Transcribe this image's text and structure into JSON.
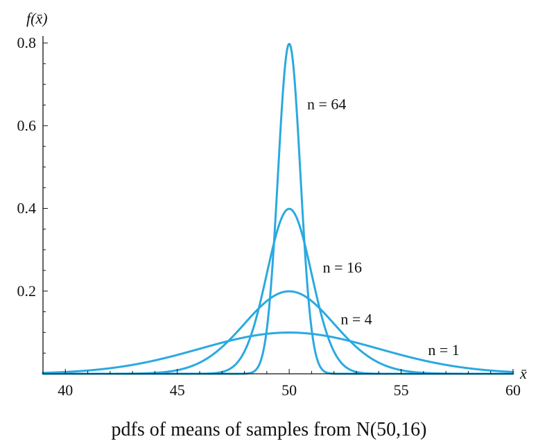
{
  "chart_data": {
    "type": "line",
    "title": "pdfs of means of samples from N(50,16)",
    "xlabel": "x̄",
    "ylabel": "f(x̄)",
    "xlim": [
      39,
      60
    ],
    "ylim": [
      0,
      0.8
    ],
    "xticks": [
      "40",
      "45",
      "50",
      "55",
      "60"
    ],
    "yticks": [
      "0.2",
      "0.4",
      "0.6",
      "0.8"
    ],
    "grid": false,
    "line_color": "#2aa9e0",
    "series": [
      {
        "name": "n = 1",
        "mean": 50,
        "sd": 4,
        "peak": 0.1
      },
      {
        "name": "n = 4",
        "mean": 50,
        "sd": 2,
        "peak": 0.2
      },
      {
        "name": "n = 16",
        "mean": 50,
        "sd": 1,
        "peak": 0.4
      },
      {
        "name": "n = 64",
        "mean": 50,
        "sd": 0.5,
        "peak": 0.8
      }
    ]
  }
}
